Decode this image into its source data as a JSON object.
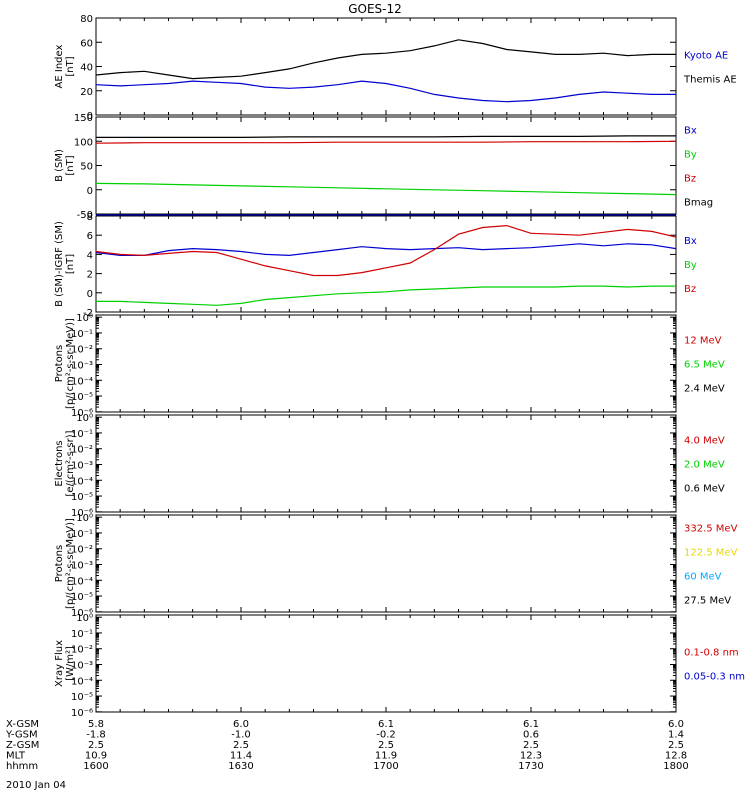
{
  "figure": {
    "title": "GOES-12",
    "footer_date": "2010 Jan 04"
  },
  "colors": {
    "black": "#000000",
    "blue": "#0000d0",
    "red": "#d00000",
    "green": "#00d000",
    "yellow": "#e6d800",
    "cyan": "#00a8ff"
  },
  "chart_data": [
    {
      "type": "line",
      "panel": "ae-index",
      "ylabel": [
        "AE Index",
        "[nT]"
      ],
      "yticks": [
        "80",
        "60",
        "40",
        "20",
        "0"
      ],
      "ylim": [
        0,
        80
      ],
      "x": [
        1600,
        1605,
        1610,
        1615,
        1620,
        1625,
        1630,
        1635,
        1640,
        1645,
        1650,
        1655,
        1700,
        1705,
        1710,
        1715,
        1720,
        1725,
        1730,
        1735,
        1740,
        1745,
        1750,
        1755,
        1800
      ],
      "series": [
        {
          "name": "Kyoto AE",
          "color": "blue",
          "values": [
            25,
            24,
            25,
            26,
            28,
            27,
            26,
            23,
            22,
            23,
            25,
            28,
            26,
            22,
            17,
            14,
            12,
            11,
            12,
            14,
            17,
            19,
            18,
            17,
            17
          ]
        },
        {
          "name": "Themis AE",
          "color": "black",
          "values": [
            33,
            35,
            36,
            33,
            30,
            31,
            32,
            35,
            38,
            43,
            47,
            50,
            51,
            53,
            57,
            62,
            59,
            54,
            52,
            50,
            50,
            51,
            49,
            50,
            50
          ]
        }
      ],
      "legend": [
        {
          "label": "Kyoto AE",
          "color": "blue"
        },
        {
          "label": "Themis AE",
          "color": "black"
        }
      ]
    },
    {
      "type": "line",
      "panel": "b-sm",
      "ylabel": [
        "B (SM)",
        "[nT]"
      ],
      "yticks": [
        "150",
        "100",
        "50",
        "0",
        "-50"
      ],
      "ylim": [
        -50,
        150
      ],
      "x": [
        1600,
        1610,
        1620,
        1630,
        1640,
        1650,
        1700,
        1710,
        1720,
        1730,
        1740,
        1750,
        1800
      ],
      "series": [
        {
          "name": "Bx",
          "color": "blue",
          "values": [
            -52,
            -52,
            -52,
            -52,
            -52,
            -52,
            -52,
            -52,
            -52,
            -52,
            -52,
            -52,
            -52
          ]
        },
        {
          "name": "By",
          "color": "green",
          "values": [
            13,
            12,
            10,
            8,
            6,
            4,
            2,
            0,
            -2,
            -4,
            -6,
            -8,
            -10
          ]
        },
        {
          "name": "Bz",
          "color": "red",
          "values": [
            96,
            97,
            97,
            97,
            97,
            98,
            98,
            98,
            98,
            99,
            99,
            99,
            100
          ]
        },
        {
          "name": "Bmag",
          "color": "black",
          "values": [
            108,
            108,
            108,
            108,
            109,
            109,
            109,
            109,
            110,
            110,
            110,
            111,
            111
          ]
        }
      ],
      "legend": [
        {
          "label": "Bx",
          "color": "blue"
        },
        {
          "label": "By",
          "color": "green"
        },
        {
          "label": "Bz",
          "color": "red"
        },
        {
          "label": "Bmag",
          "color": "black"
        }
      ]
    },
    {
      "type": "line",
      "panel": "b-sm-igrf",
      "ylabel": [
        "B (SM)-IGRF (SM)",
        "[nT]"
      ],
      "yticks": [
        "8",
        "6",
        "4",
        "2",
        "0",
        "-2"
      ],
      "ylim": [
        -2,
        8
      ],
      "x": [
        1600,
        1605,
        1610,
        1615,
        1620,
        1625,
        1630,
        1635,
        1640,
        1645,
        1650,
        1655,
        1700,
        1705,
        1710,
        1715,
        1720,
        1725,
        1730,
        1735,
        1740,
        1745,
        1750,
        1755,
        1800
      ],
      "series": [
        {
          "name": "Bx",
          "color": "blue",
          "values": [
            4.2,
            3.9,
            3.9,
            4.4,
            4.6,
            4.5,
            4.3,
            4.0,
            3.9,
            4.2,
            4.5,
            4.8,
            4.6,
            4.5,
            4.6,
            4.7,
            4.5,
            4.6,
            4.7,
            4.9,
            5.1,
            4.9,
            5.1,
            5.0,
            4.6
          ]
        },
        {
          "name": "By",
          "color": "green",
          "values": [
            -0.9,
            -0.9,
            -1.0,
            -1.1,
            -1.2,
            -1.3,
            -1.1,
            -0.7,
            -0.5,
            -0.3,
            -0.1,
            0.0,
            0.1,
            0.3,
            0.4,
            0.5,
            0.6,
            0.6,
            0.6,
            0.6,
            0.7,
            0.7,
            0.6,
            0.7,
            0.7
          ]
        },
        {
          "name": "Bz",
          "color": "red",
          "values": [
            4.3,
            4.0,
            3.9,
            4.1,
            4.3,
            4.2,
            3.5,
            2.8,
            2.3,
            1.8,
            1.8,
            2.1,
            2.6,
            3.1,
            4.5,
            6.1,
            6.8,
            7.0,
            6.2,
            6.1,
            6.0,
            6.3,
            6.6,
            6.4,
            5.8
          ]
        }
      ],
      "legend": [
        {
          "label": "Bx",
          "color": "blue"
        },
        {
          "label": "By",
          "color": "green"
        },
        {
          "label": "Bz",
          "color": "red"
        }
      ]
    },
    {
      "type": "line",
      "panel": "protons-low",
      "ylabel": [
        "Protons",
        "[p/(cm²-s-sr-MeV)]"
      ],
      "yticks": [
        "10⁰",
        "10⁻¹",
        "10⁻²",
        "10⁻³",
        "10⁻⁴",
        "10⁻⁵",
        "10⁻⁶"
      ],
      "log_scale": true,
      "series": [],
      "legend": [
        {
          "label": "12 MeV",
          "color": "red"
        },
        {
          "label": "6.5 MeV",
          "color": "green"
        },
        {
          "label": "2.4 MeV",
          "color": "black"
        }
      ]
    },
    {
      "type": "line",
      "panel": "electrons",
      "ylabel": [
        "Electrons",
        "[e/(cm²-s-sr)]"
      ],
      "yticks": [
        "10⁰",
        "10⁻¹",
        "10⁻²",
        "10⁻³",
        "10⁻⁴",
        "10⁻⁵",
        "10⁻⁶"
      ],
      "log_scale": true,
      "series": [],
      "legend": [
        {
          "label": "4.0 MeV",
          "color": "red"
        },
        {
          "label": "2.0 MeV",
          "color": "green"
        },
        {
          "label": "0.6 MeV",
          "color": "black"
        }
      ]
    },
    {
      "type": "line",
      "panel": "protons-high",
      "ylabel": [
        "Protons",
        "[p/(cm²-s-sr-MeV)]"
      ],
      "yticks": [
        "10⁰",
        "10⁻¹",
        "10⁻²",
        "10⁻³",
        "10⁻⁴",
        "10⁻⁵",
        "10⁻⁶"
      ],
      "log_scale": true,
      "series": [],
      "legend": [
        {
          "label": "332.5 MeV",
          "color": "red"
        },
        {
          "label": "122.5 MeV",
          "color": "yellow"
        },
        {
          "label": "60 MeV",
          "color": "cyan"
        },
        {
          "label": "27.5 MeV",
          "color": "black"
        }
      ]
    },
    {
      "type": "line",
      "panel": "xray",
      "ylabel": [
        "Xray Flux",
        "[W/m²]"
      ],
      "yticks": [
        "10⁰",
        "10⁻¹",
        "10⁻²",
        "10⁻³",
        "10⁻⁴",
        "10⁻⁵",
        "10⁻⁶"
      ],
      "log_scale": true,
      "series": [],
      "legend": [
        {
          "label": "0.1-0.8 nm",
          "color": "red"
        },
        {
          "label": "0.05-0.3 nm",
          "color": "blue"
        }
      ]
    }
  ],
  "x_axis": {
    "rows": [
      {
        "label": "X-GSM",
        "values": [
          "5.8",
          "6.0",
          "6.1",
          "6.1",
          "6.0"
        ]
      },
      {
        "label": "Y-GSM",
        "values": [
          "-1.8",
          "-1.0",
          "-0.2",
          "0.6",
          "1.4"
        ]
      },
      {
        "label": "Z-GSM",
        "values": [
          "2.5",
          "2.5",
          "2.5",
          "2.5",
          "2.5"
        ]
      },
      {
        "label": "MLT",
        "values": [
          "10.9",
          "11.4",
          "11.9",
          "12.3",
          "12.8"
        ]
      },
      {
        "label": "hhmm",
        "values": [
          "1600",
          "1630",
          "1700",
          "1730",
          "1800"
        ]
      }
    ]
  }
}
